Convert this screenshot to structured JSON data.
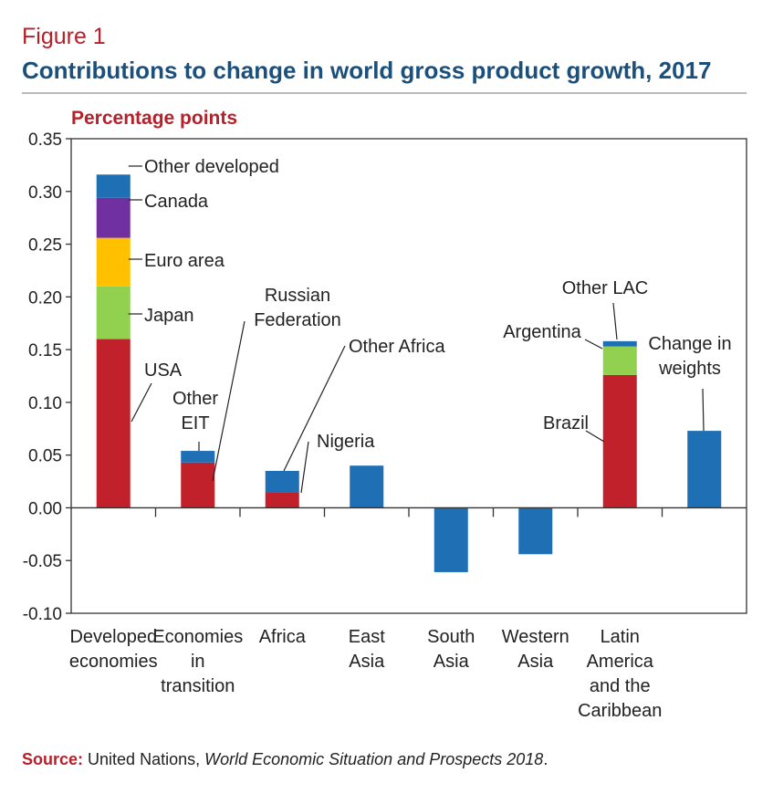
{
  "figure_label": "Figure 1",
  "title": "Contributions to change in world gross product growth, 2017",
  "source": {
    "label": "Source:",
    "text_before": " United Nations, ",
    "publication": "World Economic Situation and Prospects 2018",
    "text_after": "."
  },
  "colors": {
    "usa_red": "#c0212a",
    "japan_green": "#92d050",
    "euro_yellow": "#ffc000",
    "canada_purple": "#7030a0",
    "blue": "#1f6fb5",
    "title_blue": "#1b4f7c",
    "accent_red": "#b5212a"
  },
  "chart_data": {
    "type": "bar",
    "stacked": true,
    "ylabel": "Percentage points",
    "ylim": [
      -0.1,
      0.35
    ],
    "ytick_step": 0.05,
    "yticks": [
      "0.35",
      "0.30",
      "0.25",
      "0.20",
      "0.15",
      "0.10",
      "0.05",
      "0.00",
      "-0.05",
      "-0.10"
    ],
    "categories": [
      {
        "lines": [
          "Developed",
          "economies"
        ]
      },
      {
        "lines": [
          "Economies",
          "in",
          "transition"
        ]
      },
      {
        "lines": [
          "Africa"
        ]
      },
      {
        "lines": [
          "East",
          "Asia"
        ]
      },
      {
        "lines": [
          "South",
          "Asia"
        ]
      },
      {
        "lines": [
          "Western",
          "Asia"
        ]
      },
      {
        "lines": [
          "Latin",
          "America",
          "and the",
          "Caribbean"
        ]
      },
      {
        "lines": []
      }
    ],
    "bars": [
      {
        "segments": [
          {
            "label": "USA",
            "value": 0.16,
            "color": "#c0212a"
          },
          {
            "label": "Japan",
            "value": 0.05,
            "color": "#92d050"
          },
          {
            "label": "Euro area",
            "value": 0.046,
            "color": "#ffc000"
          },
          {
            "label": "Canada",
            "value": 0.038,
            "color": "#7030a0"
          },
          {
            "label": "Other developed",
            "value": 0.022,
            "color": "#1f6fb5"
          }
        ]
      },
      {
        "segments": [
          {
            "label": "Russian Federation",
            "value": 0.043,
            "color": "#c0212a"
          },
          {
            "label": "Other EIT",
            "value": 0.011,
            "color": "#1f6fb5"
          }
        ]
      },
      {
        "segments": [
          {
            "label": "Nigeria",
            "value": 0.015,
            "color": "#c0212a"
          },
          {
            "label": "Other Africa",
            "value": 0.02,
            "color": "#1f6fb5"
          }
        ]
      },
      {
        "segments": [
          {
            "label": "East Asia",
            "value": 0.04,
            "color": "#1f6fb5"
          }
        ]
      },
      {
        "segments": [
          {
            "label": "South Asia",
            "value": -0.061,
            "color": "#1f6fb5"
          }
        ]
      },
      {
        "segments": [
          {
            "label": "Western Asia",
            "value": -0.044,
            "color": "#1f6fb5"
          }
        ]
      },
      {
        "segments": [
          {
            "label": "Brazil",
            "value": 0.126,
            "color": "#c0212a"
          },
          {
            "label": "Argentina",
            "value": 0.027,
            "color": "#92d050"
          },
          {
            "label": "Other LAC",
            "value": 0.005,
            "color": "#1f6fb5"
          }
        ]
      },
      {
        "segments": [
          {
            "label": "Change in weights",
            "value": 0.073,
            "color": "#1f6fb5"
          }
        ]
      }
    ],
    "annotations": [
      {
        "lines": [
          "Other developed"
        ],
        "bar": 0,
        "seg": 4
      },
      {
        "lines": [
          "Canada"
        ],
        "bar": 0,
        "seg": 3
      },
      {
        "lines": [
          "Euro area"
        ],
        "bar": 0,
        "seg": 2
      },
      {
        "lines": [
          "Japan"
        ],
        "bar": 0,
        "seg": 1
      },
      {
        "lines": [
          "USA"
        ],
        "bar": 0,
        "seg": 0
      },
      {
        "lines": [
          "Other",
          "EIT"
        ],
        "bar": 1,
        "seg": 1
      },
      {
        "lines": [
          "Russian",
          "Federation"
        ],
        "bar": 1,
        "seg": 0
      },
      {
        "lines": [
          "Other Africa"
        ],
        "bar": 2,
        "seg": 1
      },
      {
        "lines": [
          "Nigeria"
        ],
        "bar": 2,
        "seg": 0
      },
      {
        "lines": [
          "Other LAC"
        ],
        "bar": 6,
        "seg": 2
      },
      {
        "lines": [
          "Argentina"
        ],
        "bar": 6,
        "seg": 1
      },
      {
        "lines": [
          "Brazil"
        ],
        "bar": 6,
        "seg": 0
      },
      {
        "lines": [
          "Change in",
          "weights"
        ],
        "bar": 7,
        "seg": 0
      }
    ]
  }
}
